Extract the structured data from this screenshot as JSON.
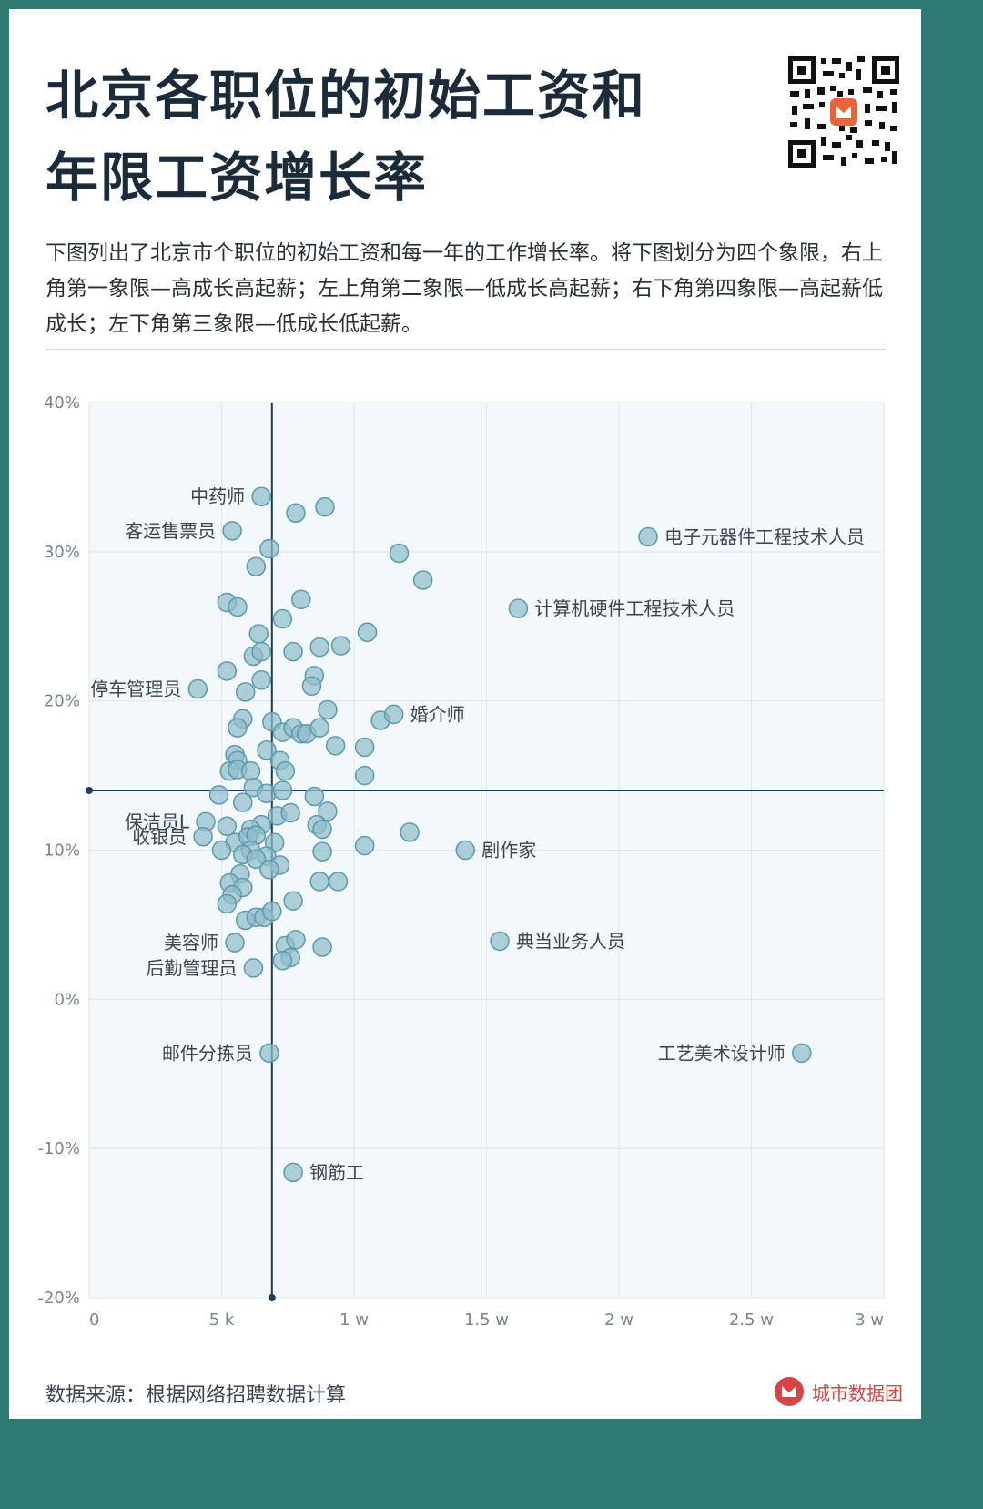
{
  "title_lines": [
    "北京各职位的初始工资和",
    "年限工资增长率"
  ],
  "description": "下图列出了北京市个职位的初始工资和每一年的工作增长率。将下图划分为四个象限，右上角第一象限—高成长高起薪；左上角第二象限—低成长高起薪；右下角第四象限—高起薪低成长；左下角第三象限—低成长低起薪。",
  "source": "数据来源：根据网络招聘数据计算",
  "brand": "城市数据团",
  "colors": {
    "background_border": "#2f7a72",
    "point_fill": "#8fbccb",
    "point_stroke": "#5d98ad",
    "axis_line": "#1f3a5a",
    "brand": "#d64545"
  },
  "chart_data": {
    "type": "scatter",
    "title": "",
    "xlabel": "",
    "ylabel": "",
    "x_unit": "monthly starting salary (yuan)",
    "y_unit": "percent",
    "xlim": [
      0,
      30000
    ],
    "ylim": [
      -20,
      40
    ],
    "x_ticks": [
      {
        "value": 0,
        "label": "0"
      },
      {
        "value": 5000,
        "label": "5 k"
      },
      {
        "value": 10000,
        "label": "1 w"
      },
      {
        "value": 15000,
        "label": "1.5 w"
      },
      {
        "value": 20000,
        "label": "2 w"
      },
      {
        "value": 25000,
        "label": "2.5 w"
      },
      {
        "value": 30000,
        "label": "3 w"
      }
    ],
    "y_ticks": [
      {
        "value": 40,
        "label": "40%"
      },
      {
        "value": 30,
        "label": "30%"
      },
      {
        "value": 20,
        "label": "20%"
      },
      {
        "value": 10,
        "label": "10%"
      },
      {
        "value": 0,
        "label": "0%"
      },
      {
        "value": -10,
        "label": "-10%"
      },
      {
        "value": -20,
        "label": "-20%"
      }
    ],
    "grid": true,
    "quadrant_divider": {
      "x": 6900,
      "y": 14
    },
    "labeled_points": [
      {
        "label": "中药师",
        "x": 6500,
        "y": 33.7,
        "side": "left"
      },
      {
        "label": "客运售票员",
        "x": 5400,
        "y": 31.4,
        "side": "left"
      },
      {
        "label": "停车管理员",
        "x": 4100,
        "y": 20.8,
        "side": "left"
      },
      {
        "label": "保洁员L",
        "x": 4400,
        "y": 11.9,
        "side": "left"
      },
      {
        "label": "收银员",
        "x": 4300,
        "y": 10.9,
        "side": "left"
      },
      {
        "label": "美容师",
        "x": 5500,
        "y": 3.8,
        "side": "left"
      },
      {
        "label": "后勤管理员",
        "x": 6200,
        "y": 2.1,
        "side": "left"
      },
      {
        "label": "邮件分拣员",
        "x": 6800,
        "y": -3.6,
        "side": "left"
      },
      {
        "label": "钢筋工",
        "x": 7700,
        "y": -11.6,
        "side": "right"
      },
      {
        "label": "婚介师",
        "x": 11500,
        "y": 19.1,
        "side": "right"
      },
      {
        "label": "剧作家",
        "x": 14200,
        "y": 10.0,
        "side": "right"
      },
      {
        "label": "典当业务人员",
        "x": 15500,
        "y": 3.9,
        "side": "right"
      },
      {
        "label": "电子元器件工程技术人员",
        "x": 21100,
        "y": 31.0,
        "side": "right"
      },
      {
        "label": "计算机硬件工程技术人员",
        "x": 16200,
        "y": 26.2,
        "side": "right"
      },
      {
        "label": "工艺美术设计师",
        "x": 26900,
        "y": -3.6,
        "side": "left"
      }
    ],
    "points": [
      [
        7800,
        32.6
      ],
      [
        8900,
        33.0
      ],
      [
        6800,
        30.2
      ],
      [
        6300,
        29.0
      ],
      [
        11700,
        29.9
      ],
      [
        12600,
        28.1
      ],
      [
        5200,
        26.6
      ],
      [
        5600,
        26.3
      ],
      [
        8000,
        26.8
      ],
      [
        7300,
        25.5
      ],
      [
        6400,
        24.5
      ],
      [
        10500,
        24.6
      ],
      [
        6200,
        23.0
      ],
      [
        6500,
        23.3
      ],
      [
        7700,
        23.3
      ],
      [
        8700,
        23.6
      ],
      [
        9500,
        23.7
      ],
      [
        5200,
        22.0
      ],
      [
        6500,
        21.4
      ],
      [
        8500,
        21.7
      ],
      [
        8400,
        21.0
      ],
      [
        5900,
        20.6
      ],
      [
        5800,
        18.8
      ],
      [
        5600,
        18.2
      ],
      [
        6900,
        18.6
      ],
      [
        7300,
        17.9
      ],
      [
        7700,
        18.2
      ],
      [
        8000,
        17.8
      ],
      [
        8200,
        17.8
      ],
      [
        8700,
        18.2
      ],
      [
        9000,
        19.4
      ],
      [
        11000,
        18.7
      ],
      [
        5500,
        16.4
      ],
      [
        5600,
        16.0
      ],
      [
        6700,
        16.7
      ],
      [
        7200,
        16.0
      ],
      [
        9300,
        17.0
      ],
      [
        10400,
        16.9
      ],
      [
        5300,
        15.3
      ],
      [
        5600,
        15.4
      ],
      [
        6100,
        15.3
      ],
      [
        7400,
        15.3
      ],
      [
        10400,
        15.0
      ],
      [
        4900,
        13.7
      ],
      [
        6200,
        14.2
      ],
      [
        6700,
        13.8
      ],
      [
        7300,
        14.0
      ],
      [
        8500,
        13.6
      ],
      [
        5800,
        13.2
      ],
      [
        7100,
        12.3
      ],
      [
        7600,
        12.5
      ],
      [
        9000,
        12.6
      ],
      [
        5200,
        11.6
      ],
      [
        6500,
        11.7
      ],
      [
        6100,
        11.4
      ],
      [
        8600,
        11.7
      ],
      [
        8800,
        11.4
      ],
      [
        12100,
        11.2
      ],
      [
        5500,
        10.5
      ],
      [
        6000,
        10.9
      ],
      [
        6300,
        11.0
      ],
      [
        7000,
        10.5
      ],
      [
        5000,
        10.0
      ],
      [
        6100,
        10.0
      ],
      [
        5800,
        9.7
      ],
      [
        6700,
        9.6
      ],
      [
        7200,
        9.0
      ],
      [
        6300,
        9.4
      ],
      [
        6800,
        8.7
      ],
      [
        8800,
        9.9
      ],
      [
        10400,
        10.3
      ],
      [
        5700,
        8.4
      ],
      [
        5300,
        7.8
      ],
      [
        5800,
        7.5
      ],
      [
        5400,
        7.0
      ],
      [
        8700,
        7.9
      ],
      [
        9400,
        7.9
      ],
      [
        5200,
        6.4
      ],
      [
        7700,
        6.6
      ],
      [
        5900,
        5.3
      ],
      [
        6300,
        5.5
      ],
      [
        6600,
        5.5
      ],
      [
        6900,
        5.9
      ],
      [
        7400,
        3.6
      ],
      [
        7800,
        4.0
      ],
      [
        8800,
        3.5
      ],
      [
        7600,
        2.8
      ],
      [
        7300,
        2.6
      ]
    ]
  }
}
